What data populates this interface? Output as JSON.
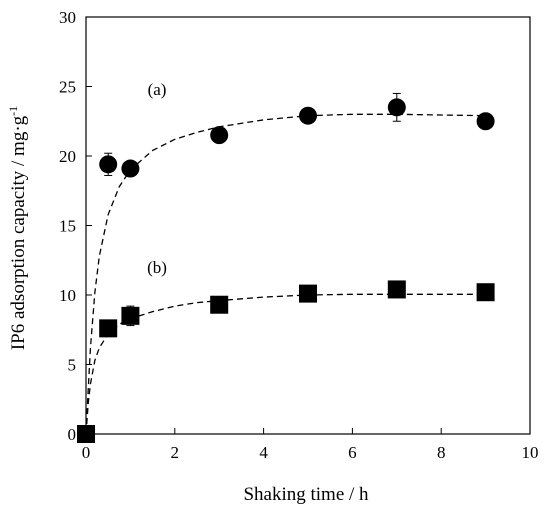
{
  "chart_data": {
    "type": "scatter",
    "xlabel": "Shaking time / h",
    "ylabel": "IP6 adsorption capacity / mg·g",
    "ylabel_sup": "-1",
    "xlim": [
      0,
      10
    ],
    "ylim": [
      0,
      30
    ],
    "x_ticks": [
      "0",
      "2",
      "4",
      "6",
      "8",
      "10"
    ],
    "y_ticks": [
      "0",
      "5",
      "10",
      "15",
      "20",
      "25",
      "30"
    ],
    "grid": false,
    "series": [
      {
        "marker": "circle",
        "color": "#000000",
        "x": [
          0,
          0.5,
          1,
          3,
          5,
          7,
          9
        ],
        "y": [
          0,
          19.4,
          19.1,
          21.5,
          22.9,
          23.5,
          22.5
        ],
        "error": [
          0,
          0.8,
          0.4,
          0.3,
          0.3,
          1.0,
          0.4
        ],
        "fit_curve": {
          "style": "dashed",
          "x": [
            0,
            0.05,
            0.1,
            0.2,
            0.3,
            0.5,
            0.75,
            1,
            1.5,
            2,
            2.5,
            3,
            4,
            5,
            6,
            7,
            8,
            9
          ],
          "y": [
            0,
            3.2,
            6.2,
            10.2,
            12.8,
            15.8,
            17.8,
            19.0,
            20.4,
            21.2,
            21.7,
            22.1,
            22.6,
            22.9,
            23.0,
            23.0,
            22.95,
            22.9
          ]
        }
      },
      {
        "marker": "square",
        "color": "#000000",
        "x": [
          0,
          0.5,
          1,
          3,
          5,
          7,
          9
        ],
        "y": [
          0,
          7.6,
          8.5,
          9.3,
          10.1,
          10.4,
          10.2
        ],
        "error": [
          0,
          0.4,
          0.7,
          0.3,
          0.3,
          0.5,
          0.3
        ],
        "fit_curve": {
          "style": "dashed",
          "x": [
            0,
            0.05,
            0.1,
            0.2,
            0.3,
            0.5,
            0.75,
            1,
            1.5,
            2,
            2.5,
            3,
            4,
            5,
            6,
            7,
            8,
            9
          ],
          "y": [
            0,
            2.2,
            3.6,
            5.3,
            6.2,
            7.2,
            7.9,
            8.3,
            8.8,
            9.2,
            9.45,
            9.6,
            9.85,
            10.0,
            10.05,
            10.05,
            10.05,
            10.05
          ]
        }
      }
    ],
    "annotations": [
      {
        "text": "(a)",
        "x": 1.6,
        "y": 24.4
      },
      {
        "text": "(b)",
        "x": 1.6,
        "y": 11.6
      }
    ]
  }
}
